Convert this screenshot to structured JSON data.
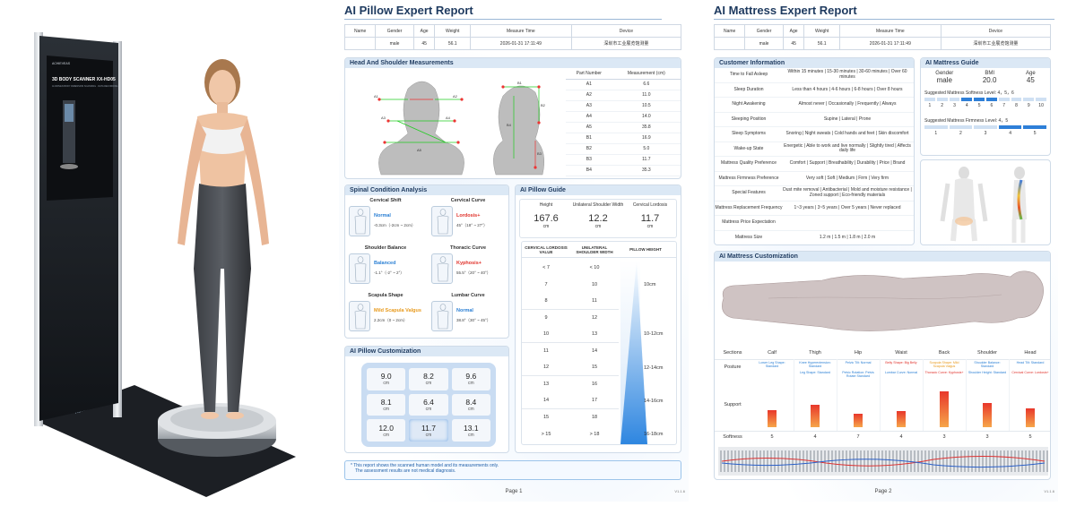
{
  "device": {
    "screen_brand": "ACHIEVEAS",
    "screen_title": "3D BODY SCANNER XX-HD05",
    "screen_sub": "AI-DRIVEN BODY DIMENSION SCANNING · DATA RECORDING",
    "base_brand": "ACHIEVEAS"
  },
  "page1": {
    "title": "AI Pillow Expert Report",
    "info_headers": [
      "Name",
      "Gender",
      "Age",
      "Weight",
      "Measure Time",
      "Device"
    ],
    "info_values": [
      "",
      "male",
      "45",
      "56.1",
      "2026-01-31 17:11:49",
      "深圳市工业展览馆测量"
    ],
    "head_section_title": "Head And Shoulder Measurements",
    "part_header": "Part Number",
    "measure_header": "Measurement (cm)",
    "parts": [
      {
        "name": "A1",
        "value": "6.6"
      },
      {
        "name": "A2",
        "value": "11.0"
      },
      {
        "name": "A3",
        "value": "10.5"
      },
      {
        "name": "A4",
        "value": "14.0"
      },
      {
        "name": "A5",
        "value": "35.8"
      },
      {
        "name": "B1",
        "value": "16.9"
      },
      {
        "name": "B2",
        "value": "5.0"
      },
      {
        "name": "B3",
        "value": "11.7"
      },
      {
        "name": "B4",
        "value": "35.3"
      }
    ],
    "front_labels": [
      "A1",
      "A2",
      "A3",
      "A4",
      "A5"
    ],
    "side_labels": [
      "B1",
      "B2",
      "B3",
      "B4"
    ],
    "spinal_title": "Spinal Condition Analysis",
    "spinal": [
      {
        "name": "Cervical Shift",
        "status": "Normal",
        "range": "-0.3cm（-2cm ~ 2cm）",
        "color": "#2a7fd4"
      },
      {
        "name": "Cervical Curve",
        "status": "Lordosis+",
        "range": "45°（18° ~ 27°）",
        "color": "#e0322b"
      },
      {
        "name": "Shoulder Balance",
        "status": "Balanced",
        "range": "-1.1°（-2° ~ 2°）",
        "color": "#2a7fd4"
      },
      {
        "name": "Thoracic Curve",
        "status": "Kyphosis+",
        "range": "55.5°（20° ~ 40°）",
        "color": "#e0322b"
      },
      {
        "name": "Scapula Shape",
        "status": "Mild Scapula Valgus",
        "range": "2.2cm（0 ~ 2cm）",
        "color": "#e89a1c"
      },
      {
        "name": "Lumbar Curve",
        "status": "Normal",
        "range": "38.8°（30° ~ 45°）",
        "color": "#2a7fd4"
      }
    ],
    "guide_title": "AI Pillow Guide",
    "guide_stats": [
      {
        "label": "Height",
        "value": "167.6",
        "unit": "cm"
      },
      {
        "label": "Unilateral Shoulder Width",
        "value": "12.2",
        "unit": "cm"
      },
      {
        "label": "Cervical Lordosis",
        "value": "11.7",
        "unit": "cm"
      }
    ],
    "guide_headers": [
      "CERVICAL LORDOSIS VALUE",
      "UNILATERAL SHOULDER WIDTH",
      "PILLOW HEIGHT"
    ],
    "guide_rows": [
      [
        "< 7",
        "< 10"
      ],
      [
        "7",
        "10"
      ],
      [
        "8",
        "11"
      ],
      [
        "9",
        "12"
      ],
      [
        "10",
        "13"
      ],
      [
        "11",
        "14"
      ],
      [
        "12",
        "15"
      ],
      [
        "13",
        "16"
      ],
      [
        "14",
        "17"
      ],
      [
        "15",
        "18"
      ],
      [
        "> 15",
        "> 18"
      ]
    ],
    "pillow_heights": [
      "10cm",
      "10-12cm",
      "12-14cm",
      "14-16cm",
      "16-18cm"
    ],
    "custom_title": "AI Pillow Customization",
    "pillow_cells": [
      {
        "value": "9.0",
        "unit": "cm"
      },
      {
        "value": "8.2",
        "unit": "cm"
      },
      {
        "value": "9.6",
        "unit": "cm"
      },
      {
        "value": "8.1",
        "unit": "cm"
      },
      {
        "value": "6.4",
        "unit": "cm"
      },
      {
        "value": "8.4",
        "unit": "cm"
      },
      {
        "value": "12.0",
        "unit": "cm"
      },
      {
        "value": "11.7",
        "unit": "cm"
      },
      {
        "value": "13.1",
        "unit": "cm"
      }
    ],
    "note1": "This report shows the scanned human model and its measurements only.",
    "note2": "The assessment results are not medical diagnosis.",
    "page_num": "Page 1",
    "version": "V1.1.6"
  },
  "page2": {
    "title": "AI Mattress Expert Report",
    "info_headers": [
      "Name",
      "Gender",
      "Age",
      "Weight",
      "Measure Time",
      "Device"
    ],
    "info_values": [
      "",
      "male",
      "45",
      "56.1",
      "2026-01-31 17:11:49",
      "深圳市工业展览馆测量"
    ],
    "customer_title": "Customer Information",
    "customer_rows": [
      {
        "label": "Time to Fall Asleep",
        "value": "Within 15 minutes | 15-30 minutes | 30-60 minutes | Over 60 minutes"
      },
      {
        "label": "Sleep Duration",
        "value": "Less than 4 hours | 4-6 hours | 6-8 hours | Over 8 hours"
      },
      {
        "label": "Night Awakening",
        "value": "Almost never | Occasionally | Frequently | Always"
      },
      {
        "label": "Sleeping Position",
        "value": "Supine | Lateral | Prone"
      },
      {
        "label": "Sleep Symptoms",
        "value": "Snoring | Night sweats | Cold hands and feet | Skin discomfort"
      },
      {
        "label": "Wake-up State",
        "value": "Energetic | Able to work and live normally | Slightly tired | Affects daily life"
      },
      {
        "label": "Mattress Quality Preference",
        "value": "Comfort | Support | Breathability | Durability | Price | Brand"
      },
      {
        "label": "Mattress Firmness Preference",
        "value": "Very soft | Soft | Medium | Firm | Very firm"
      },
      {
        "label": "Special Features",
        "value": "Dust mite removal | Antibacterial | Mold and moisture resistance | Zoned support | Eco-friendly materials"
      },
      {
        "label": "Mattress Replacement Frequency",
        "value": "1~3 years | 3~5 years | Over 5 years | Never replaced"
      },
      {
        "label": "Mattress Price Expectation",
        "value": ""
      },
      {
        "label": "Mattress Size",
        "value": "1.2 m | 1.5 m | 1.8 m | 2.0 m"
      }
    ],
    "guide_title": "AI Mattress Guide",
    "guide_headers": [
      "Gender",
      "BMI",
      "Age"
    ],
    "guide_values": [
      "male",
      "20.0",
      "45"
    ],
    "softness_label": "Suggested Mattress Softness Level:",
    "softness_value": "4，5，6",
    "softness_scale": [
      "1",
      "2",
      "3",
      "4",
      "5",
      "6",
      "7",
      "8",
      "9",
      "10"
    ],
    "softness_selected": [
      4,
      5,
      6
    ],
    "firmness_label": "Suggested Mattress Firmness Level:",
    "firmness_value": "4，5",
    "firmness_scale": [
      "1",
      "2",
      "3",
      "4",
      "5"
    ],
    "firmness_selected": [
      4,
      5
    ],
    "custom_title": "AI Mattress Customization",
    "sections_label": "Sections",
    "posture_label": "Posture",
    "support_label": "Support",
    "softness_row_label": "Softness",
    "sections": [
      {
        "name": "Calf",
        "posture": [
          "Lower Leg Shape: Standard"
        ],
        "support": 0.45,
        "softness": "5",
        "pcolor": "#2a7fd4"
      },
      {
        "name": "Thigh",
        "posture": [
          "Knee Hyperextension: Standard",
          "Leg Shape: Standard"
        ],
        "support": 0.6,
        "softness": "4",
        "pcolor": "#2a7fd4"
      },
      {
        "name": "Hip",
        "posture": [
          "Pelvic Tilt: Normal",
          "Pelvic Rotation: Pelvis Rotate Standard"
        ],
        "support": 0.35,
        "softness": "7",
        "pcolor": "#2a7fd4"
      },
      {
        "name": "Waist",
        "posture": [
          "Belly Shape: Big Belly",
          "Lumbar Curve: Normal"
        ],
        "support": 0.42,
        "softness": "4",
        "pcolor": "#e0322b"
      },
      {
        "name": "Back",
        "posture": [
          "Scapula Shape: Mild Scapula Valgus",
          "Thoracic Curve: Kyphosis+"
        ],
        "support": 0.95,
        "softness": "3",
        "pcolor": "#e89a1c"
      },
      {
        "name": "Shoulder",
        "posture": [
          "Shoulder Balance: Standard",
          "Shoulder Height: Standard"
        ],
        "support": 0.65,
        "softness": "3",
        "pcolor": "#2a7fd4"
      },
      {
        "name": "Head",
        "posture": [
          "Head Tilt: Standard",
          "Cervical Curve: Lordosis+"
        ],
        "support": 0.5,
        "softness": "5",
        "pcolor": "#2a7fd4"
      }
    ],
    "page_num": "Page 2",
    "version": "V1.1.6"
  }
}
